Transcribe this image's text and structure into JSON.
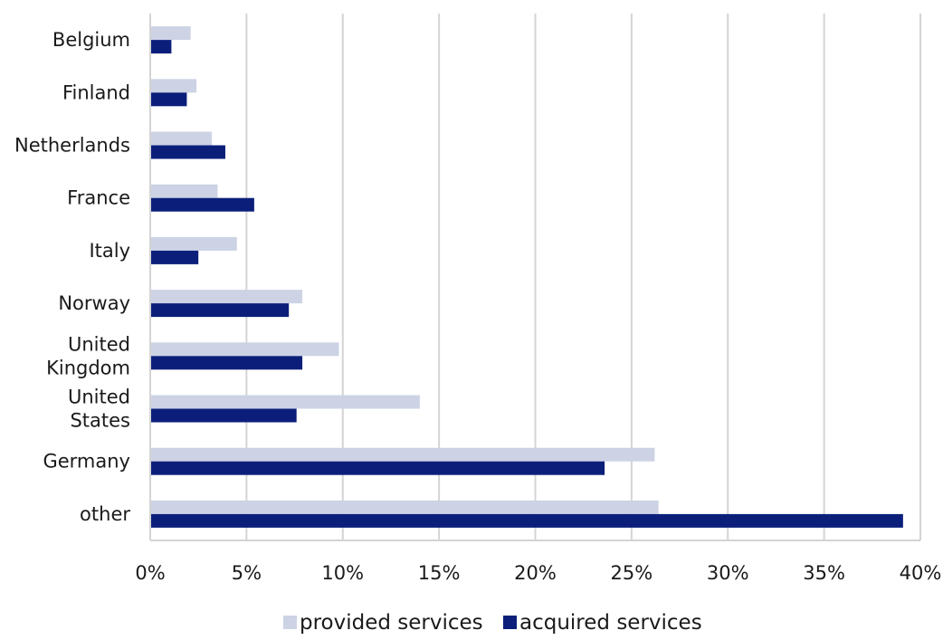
{
  "chart_data": {
    "type": "bar",
    "orientation": "horizontal",
    "categories": [
      [
        "Belgium"
      ],
      [
        "Finland"
      ],
      [
        "Netherlands"
      ],
      [
        "France"
      ],
      [
        "Italy"
      ],
      [
        "Norway"
      ],
      [
        "United",
        "Kingdom"
      ],
      [
        "United",
        "States"
      ],
      [
        "Germany"
      ],
      [
        "other"
      ]
    ],
    "series": [
      {
        "name": "provided services",
        "color": "#cdd3e5",
        "values": [
          2.1,
          2.4,
          3.2,
          3.5,
          4.5,
          7.9,
          9.8,
          14.0,
          26.2,
          26.4
        ]
      },
      {
        "name": "acquired services",
        "color": "#0b1f7a",
        "values": [
          1.1,
          1.9,
          3.9,
          5.4,
          2.5,
          7.2,
          7.9,
          7.6,
          23.6,
          39.1
        ]
      }
    ],
    "x_ticks": [
      "0%",
      "5%",
      "10%",
      "15%",
      "20%",
      "25%",
      "30%",
      "35%",
      "40%"
    ],
    "xlim": [
      0,
      40
    ],
    "grid": true,
    "legend_position": "bottom-center",
    "title": "",
    "xlabel": "",
    "ylabel": ""
  }
}
